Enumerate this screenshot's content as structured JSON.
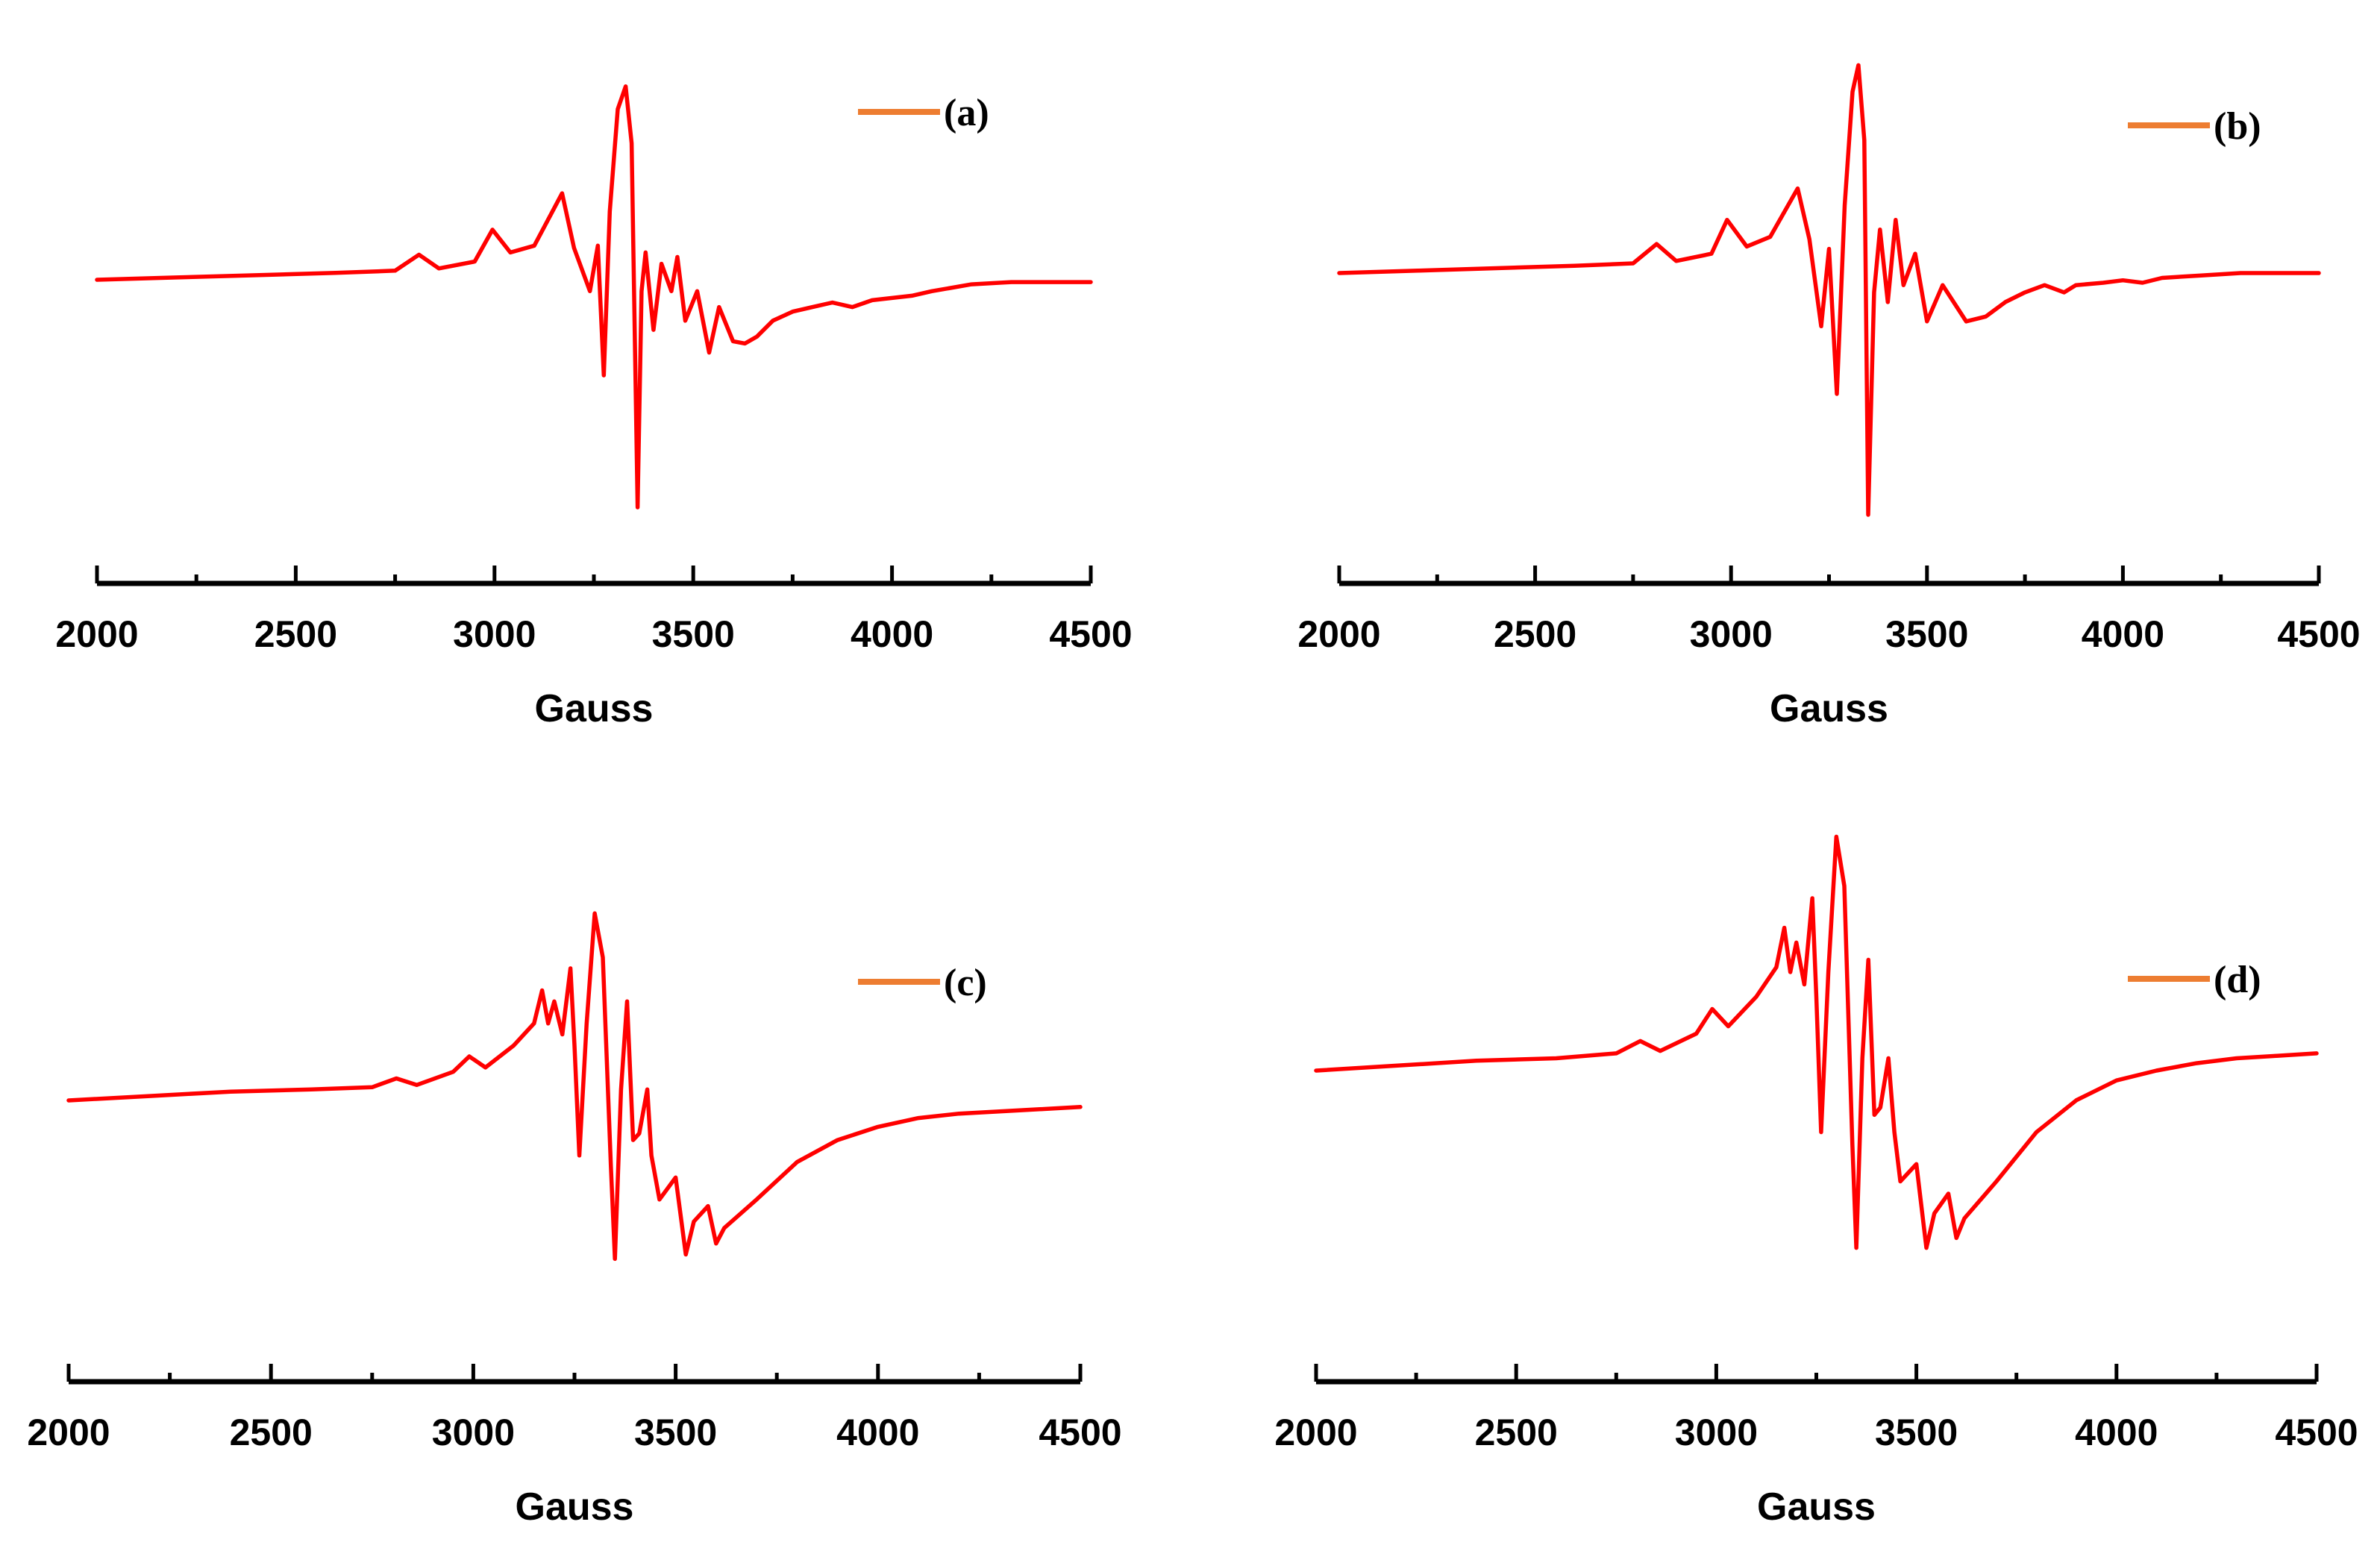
{
  "figure": {
    "description_panels": 4
  },
  "chart_data": [
    {
      "type": "line",
      "legend": "(a)",
      "xlabel": "Gauss",
      "ylabel": "",
      "xlim": [
        2000,
        4500
      ],
      "ylim": [
        -1.0,
        1.0
      ],
      "xticks": [
        "2000",
        "2500",
        "3000",
        "3500",
        "4000",
        "4500"
      ],
      "colors": {
        "trace": "#ff0000",
        "legend": "#ed7d31"
      },
      "series": [
        {
          "name": "(a)",
          "x": [
            2000,
            2200,
            2400,
            2600,
            2750,
            2810,
            2860,
            2950,
            2995,
            3040,
            3100,
            3170,
            3200,
            3240,
            3260,
            3275,
            3290,
            3310,
            3330,
            3345,
            3360,
            3370,
            3380,
            3400,
            3420,
            3445,
            3460,
            3480,
            3510,
            3540,
            3565,
            3600,
            3630,
            3660,
            3700,
            3750,
            3800,
            3850,
            3900,
            3950,
            4000,
            4050,
            4100,
            4200,
            4300,
            4400,
            4500
          ],
          "y": [
            0.0,
            0.01,
            0.02,
            0.03,
            0.04,
            0.11,
            0.05,
            0.08,
            0.22,
            0.12,
            0.15,
            0.38,
            0.14,
            -0.05,
            0.15,
            -0.42,
            0.3,
            0.75,
            0.85,
            0.6,
            -1.0,
            -0.05,
            0.12,
            -0.22,
            0.07,
            -0.05,
            0.1,
            -0.18,
            -0.05,
            -0.32,
            -0.12,
            -0.27,
            -0.28,
            -0.25,
            -0.18,
            -0.14,
            -0.12,
            -0.1,
            -0.12,
            -0.09,
            -0.08,
            -0.07,
            -0.05,
            -0.02,
            -0.01,
            -0.01,
            -0.01
          ]
        }
      ]
    },
    {
      "type": "line",
      "legend": "(b)",
      "xlabel": "Gauss",
      "ylabel": "",
      "xlim": [
        2000,
        4500
      ],
      "ylim": [
        -1.0,
        1.0
      ],
      "xticks": [
        "2000",
        "2500",
        "3000",
        "3500",
        "4000",
        "4500"
      ],
      "colors": {
        "trace": "#ff0000",
        "legend": "#ed7d31"
      },
      "series": [
        {
          "name": "(b)",
          "x": [
            2000,
            2200,
            2400,
            2600,
            2750,
            2810,
            2860,
            2950,
            2990,
            3040,
            3100,
            3170,
            3200,
            3230,
            3250,
            3270,
            3290,
            3310,
            3325,
            3340,
            3350,
            3365,
            3380,
            3400,
            3420,
            3440,
            3470,
            3500,
            3540,
            3600,
            3650,
            3700,
            3750,
            3800,
            3850,
            3880,
            3950,
            4000,
            4050,
            4100,
            4200,
            4300,
            4400,
            4500
          ],
          "y": [
            0.0,
            0.01,
            0.02,
            0.03,
            0.04,
            0.12,
            0.05,
            0.08,
            0.22,
            0.11,
            0.15,
            0.35,
            0.14,
            -0.22,
            0.1,
            -0.5,
            0.28,
            0.75,
            0.86,
            0.55,
            -1.0,
            -0.08,
            0.18,
            -0.12,
            0.22,
            -0.05,
            0.08,
            -0.2,
            -0.05,
            -0.2,
            -0.18,
            -0.12,
            -0.08,
            -0.05,
            -0.08,
            -0.05,
            -0.04,
            -0.03,
            -0.04,
            -0.02,
            -0.01,
            0.0,
            0.0,
            0.0
          ]
        }
      ]
    },
    {
      "type": "line",
      "legend": "(c)",
      "xlabel": "Gauss",
      "ylabel": "",
      "xlim": [
        2000,
        4500
      ],
      "ylim": [
        -1.0,
        1.0
      ],
      "xticks": [
        "2000",
        "2500",
        "3000",
        "3500",
        "4000",
        "4500"
      ],
      "colors": {
        "trace": "#ff0000",
        "legend": "#ed7d31"
      },
      "series": [
        {
          "name": "(c)",
          "x": [
            2000,
            2200,
            2400,
            2600,
            2750,
            2810,
            2860,
            2950,
            2990,
            3030,
            3100,
            3150,
            3170,
            3185,
            3200,
            3220,
            3240,
            3250,
            3262,
            3280,
            3300,
            3320,
            3340,
            3350,
            3365,
            3380,
            3395,
            3410,
            3430,
            3440,
            3460,
            3500,
            3525,
            3545,
            3580,
            3600,
            3620,
            3700,
            3800,
            3900,
            4000,
            4100,
            4200,
            4300,
            4400,
            4500
          ],
          "y": [
            0.0,
            0.02,
            0.04,
            0.05,
            0.06,
            0.1,
            0.07,
            0.13,
            0.2,
            0.15,
            0.25,
            0.35,
            0.5,
            0.35,
            0.45,
            0.3,
            0.6,
            0.25,
            -0.25,
            0.35,
            0.85,
            0.65,
            -0.3,
            -0.72,
            0.05,
            0.45,
            -0.18,
            -0.15,
            0.05,
            -0.25,
            -0.45,
            -0.35,
            -0.7,
            -0.55,
            -0.48,
            -0.65,
            -0.58,
            -0.45,
            -0.28,
            -0.18,
            -0.12,
            -0.08,
            -0.06,
            -0.05,
            -0.04,
            -0.03
          ]
        }
      ]
    },
    {
      "type": "line",
      "legend": "(d)",
      "xlabel": "Gauss",
      "ylabel": "",
      "xlim": [
        2000,
        4500
      ],
      "ylim": [
        -1.0,
        1.0
      ],
      "xticks": [
        "2000",
        "2500",
        "3000",
        "3500",
        "4000",
        "4500"
      ],
      "colors": {
        "trace": "#ff0000",
        "legend": "#ed7d31"
      },
      "series": [
        {
          "name": "(d)",
          "x": [
            2000,
            2200,
            2400,
            2600,
            2750,
            2810,
            2860,
            2950,
            2990,
            3030,
            3100,
            3150,
            3170,
            3185,
            3200,
            3220,
            3240,
            3250,
            3262,
            3280,
            3300,
            3320,
            3340,
            3350,
            3365,
            3380,
            3395,
            3410,
            3430,
            3445,
            3460,
            3500,
            3525,
            3545,
            3580,
            3600,
            3620,
            3700,
            3800,
            3900,
            4000,
            4100,
            4200,
            4300,
            4400,
            4500
          ],
          "y": [
            0.0,
            0.02,
            0.04,
            0.05,
            0.07,
            0.12,
            0.08,
            0.15,
            0.25,
            0.18,
            0.3,
            0.42,
            0.58,
            0.4,
            0.52,
            0.35,
            0.7,
            0.3,
            -0.25,
            0.4,
            0.95,
            0.75,
            -0.3,
            -0.72,
            0.05,
            0.45,
            -0.18,
            -0.15,
            0.05,
            -0.25,
            -0.45,
            -0.38,
            -0.72,
            -0.58,
            -0.5,
            -0.68,
            -0.6,
            -0.45,
            -0.25,
            -0.12,
            -0.04,
            0.0,
            0.03,
            0.05,
            0.06,
            0.07
          ]
        }
      ]
    }
  ]
}
